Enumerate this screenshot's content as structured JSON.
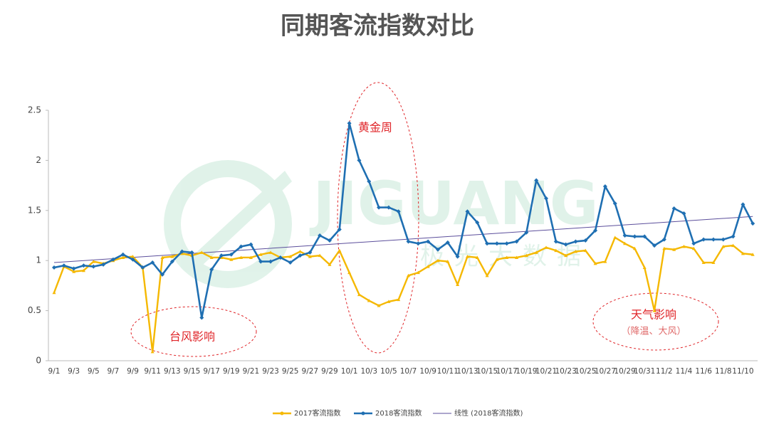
{
  "chart_data": {
    "type": "line",
    "title": "同期客流指数对比",
    "categories": [
      "9/1",
      null,
      "9/3",
      null,
      "9/5",
      null,
      "9/7",
      null,
      "9/9",
      null,
      "9/11",
      null,
      "9/13",
      null,
      "9/15",
      null,
      "9/17",
      null,
      "9/19",
      null,
      "9/21",
      null,
      "9/23",
      null,
      "9/25",
      null,
      "9/27",
      null,
      "9/29",
      null,
      "10/1",
      null,
      "10/3",
      null,
      "10/5",
      null,
      "10/7",
      null,
      "10/9",
      null,
      "10/11",
      null,
      "10/13",
      null,
      "10/15",
      null,
      "10/17",
      null,
      "10/19",
      null,
      "10/21",
      null,
      "10/23",
      null,
      "10/25",
      null,
      "10/27",
      null,
      "10/29",
      null,
      "10/31",
      null,
      "11/2",
      null,
      "11/4",
      null,
      "11/6",
      null,
      "11/8",
      null,
      "11/10",
      null
    ],
    "series": [
      {
        "name": "2017客流指数",
        "color": "#f5b800",
        "marker": "triangle",
        "values": [
          0.68,
          0.94,
          0.89,
          0.9,
          0.99,
          0.97,
          1.0,
          1.03,
          1.04,
          0.93,
          0.09,
          1.03,
          1.04,
          1.07,
          1.05,
          1.08,
          1.03,
          1.03,
          1.01,
          1.03,
          1.03,
          1.06,
          1.08,
          1.03,
          1.04,
          1.09,
          1.04,
          1.05,
          0.96,
          1.1,
          0.88,
          0.66,
          0.6,
          0.55,
          0.59,
          0.61,
          0.85,
          0.88,
          0.94,
          1.0,
          0.99,
          0.76,
          1.04,
          1.03,
          0.85,
          1.01,
          1.03,
          1.03,
          1.05,
          1.08,
          1.13,
          1.1,
          1.05,
          1.09,
          1.1,
          0.97,
          0.99,
          1.23,
          1.17,
          1.12,
          0.93,
          0.5,
          1.12,
          1.11,
          1.14,
          1.12,
          0.98,
          0.98,
          1.14,
          1.15,
          1.07,
          1.06
        ]
      },
      {
        "name": "2018客流指数",
        "color": "#1f6fb2",
        "marker": "diamond",
        "values": [
          0.93,
          0.95,
          0.92,
          0.95,
          0.94,
          0.96,
          1.01,
          1.06,
          1.01,
          0.93,
          0.98,
          0.86,
          0.99,
          1.09,
          1.08,
          0.43,
          0.91,
          1.05,
          1.06,
          1.14,
          1.16,
          0.99,
          0.99,
          1.03,
          0.98,
          1.05,
          1.08,
          1.25,
          1.2,
          1.31,
          2.37,
          2.0,
          1.79,
          1.53,
          1.53,
          1.49,
          1.19,
          1.17,
          1.19,
          1.11,
          1.18,
          1.04,
          1.49,
          1.38,
          1.17,
          1.17,
          1.17,
          1.19,
          1.28,
          1.8,
          1.62,
          1.19,
          1.16,
          1.19,
          1.2,
          1.3,
          1.74,
          1.57,
          1.25,
          1.24,
          1.24,
          1.15,
          1.21,
          1.52,
          1.47,
          1.17,
          1.21,
          1.21,
          1.21,
          1.24,
          1.56,
          1.37
        ]
      }
    ],
    "trendline": {
      "name": "线性 (2018客流指数)",
      "color": "#5b4e9b",
      "values": [
        0.98,
        1.44
      ]
    },
    "ylim": [
      0,
      2.5
    ],
    "yticks": [
      0,
      {
        "value": 0.5,
        "label": "0.5"
      },
      1,
      {
        "value": 1.5,
        "label": "1.5"
      },
      2,
      {
        "value": 2.5,
        "label": "2.5"
      }
    ],
    "grid": false,
    "annotations": [
      "黄金周",
      "台风影响",
      "天气影响",
      "（降温、大风）"
    ],
    "watermark": [
      "JIGUANG",
      "极光大数据"
    ]
  }
}
